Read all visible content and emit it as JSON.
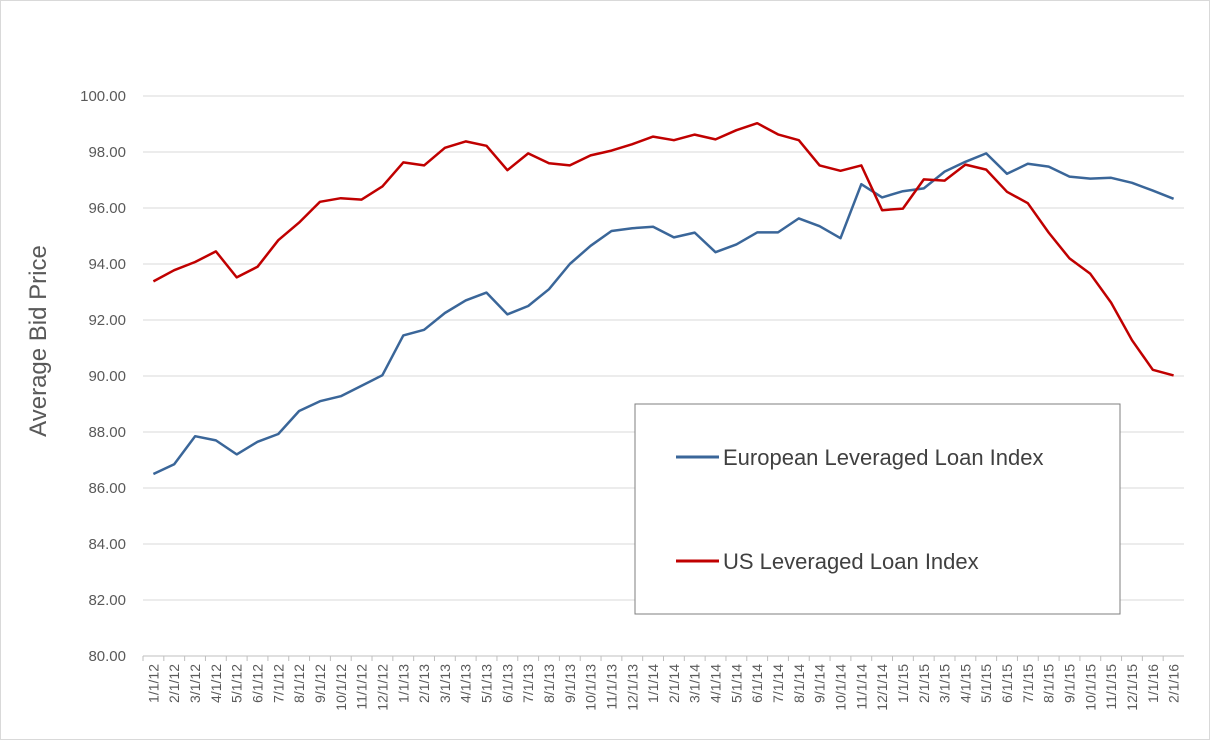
{
  "chart_data": {
    "type": "line",
    "title": "",
    "xlabel": "",
    "ylabel": "Average Bid Price",
    "ylim": [
      80,
      100
    ],
    "y_ticks": [
      "80.00",
      "82.00",
      "84.00",
      "86.00",
      "88.00",
      "90.00",
      "92.00",
      "94.00",
      "96.00",
      "98.00",
      "100.00"
    ],
    "grid": "horizontal",
    "legend_position": "lower-right",
    "categories": [
      "1/1/12",
      "2/1/12",
      "3/1/12",
      "4/1/12",
      "5/1/12",
      "6/1/12",
      "7/1/12",
      "8/1/12",
      "9/1/12",
      "10/1/12",
      "11/1/12",
      "12/1/12",
      "1/1/13",
      "2/1/13",
      "3/1/13",
      "4/1/13",
      "5/1/13",
      "6/1/13",
      "7/1/13",
      "8/1/13",
      "9/1/13",
      "10/1/13",
      "11/1/13",
      "12/1/13",
      "1/1/14",
      "2/1/14",
      "3/1/14",
      "4/1/14",
      "5/1/14",
      "6/1/14",
      "7/1/14",
      "8/1/14",
      "9/1/14",
      "10/1/14",
      "11/1/14",
      "12/1/14",
      "1/1/15",
      "2/1/15",
      "3/1/15",
      "4/1/15",
      "5/1/15",
      "6/1/15",
      "7/1/15",
      "8/1/15",
      "9/1/15",
      "10/1/15",
      "11/1/15",
      "12/1/15",
      "1/1/16",
      "2/1/16"
    ],
    "series": [
      {
        "name": "European Leveraged Loan Index",
        "color": "#3a6699",
        "values": [
          86.5,
          86.85,
          87.85,
          87.7,
          87.2,
          87.65,
          87.93,
          88.75,
          89.1,
          89.28,
          89.65,
          90.03,
          91.45,
          91.65,
          92.25,
          92.7,
          92.98,
          92.2,
          92.5,
          93.1,
          94.0,
          94.65,
          95.18,
          95.28,
          95.33,
          94.95,
          95.12,
          94.42,
          94.7,
          95.13,
          95.13,
          95.63,
          95.35,
          94.92,
          96.85,
          96.38,
          96.6,
          96.7,
          97.3,
          97.65,
          97.95,
          97.22,
          97.58,
          97.48,
          97.12,
          97.05,
          97.08,
          96.9,
          96.62,
          96.33
        ]
      },
      {
        "name": "US Leveraged Loan Index",
        "color": "#c00000",
        "values": [
          93.38,
          93.78,
          94.07,
          94.45,
          93.52,
          93.9,
          94.85,
          95.48,
          96.22,
          96.35,
          96.3,
          96.77,
          97.63,
          97.52,
          98.15,
          98.38,
          98.22,
          97.35,
          97.95,
          97.6,
          97.52,
          97.88,
          98.05,
          98.28,
          98.55,
          98.42,
          98.62,
          98.45,
          98.78,
          99.03,
          98.63,
          98.42,
          97.52,
          97.33,
          97.52,
          95.92,
          95.98,
          97.02,
          96.98,
          97.55,
          97.37,
          96.58,
          96.17,
          95.12,
          94.2,
          93.65,
          92.62,
          91.28,
          90.22,
          90.02
        ]
      }
    ]
  }
}
